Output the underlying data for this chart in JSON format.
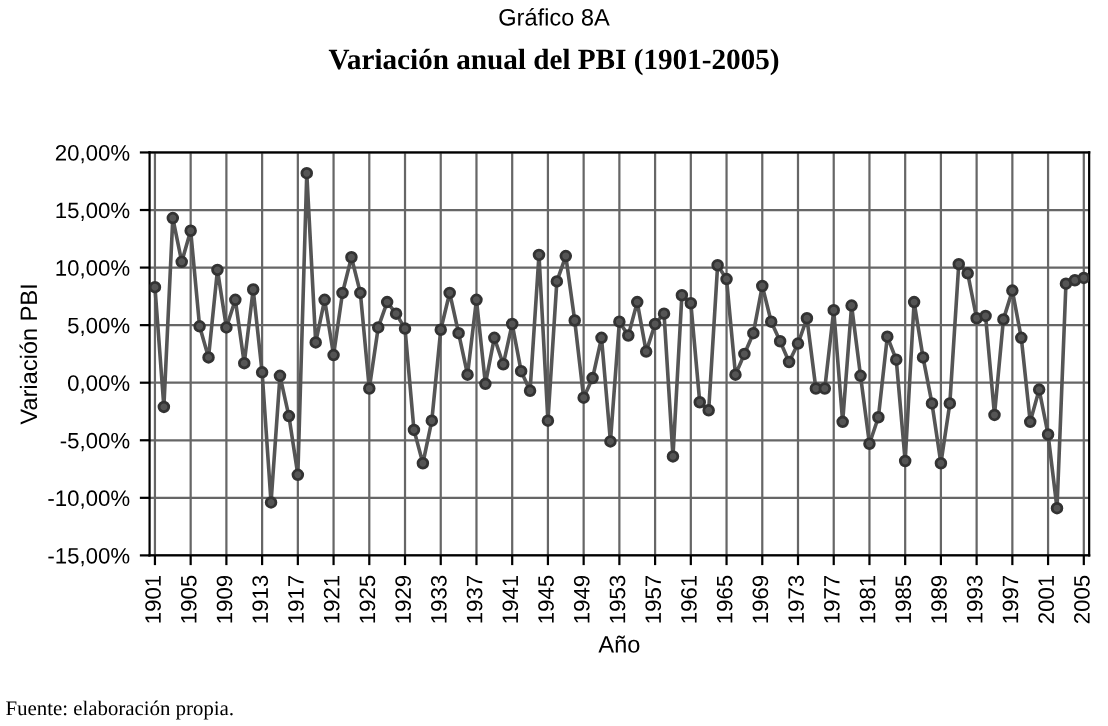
{
  "chart_data": {
    "type": "line",
    "title": "Gráfico 8A",
    "subtitle": "Variación anual del PBI (1901-2005)",
    "xlabel": "Año",
    "ylabel": "Variación PBI",
    "categories": [
      "1901",
      null,
      null,
      null,
      "1905",
      null,
      null,
      null,
      "1909",
      null,
      null,
      null,
      "1913",
      null,
      null,
      null,
      "1917",
      null,
      null,
      null,
      "1921",
      null,
      null,
      null,
      "1925",
      null,
      null,
      null,
      "1929",
      null,
      null,
      null,
      "1933",
      null,
      null,
      null,
      "1937",
      null,
      null,
      null,
      "1941",
      null,
      null,
      null,
      "1945",
      null,
      null,
      null,
      "1949",
      null,
      null,
      null,
      "1953",
      null,
      null,
      null,
      "1957",
      null,
      null,
      null,
      "1961",
      null,
      null,
      null,
      "1965",
      null,
      null,
      null,
      "1969",
      null,
      null,
      null,
      "1973",
      null,
      null,
      null,
      "1977",
      null,
      null,
      null,
      "1981",
      null,
      null,
      null,
      "1985",
      null,
      null,
      null,
      "1989",
      null,
      null,
      null,
      "1993",
      null,
      null,
      null,
      "1997",
      null,
      null,
      null,
      "2001",
      null,
      null,
      null,
      "2005"
    ],
    "series": [
      {
        "color": "#555555",
        "values": [
          8.3,
          -2.1,
          14.3,
          10.5,
          13.2,
          4.9,
          2.2,
          9.8,
          4.8,
          7.2,
          1.7,
          8.1,
          0.9,
          -10.4,
          0.6,
          -2.9,
          -8.0,
          18.2,
          3.5,
          7.2,
          2.4,
          7.8,
          10.9,
          7.8,
          -0.5,
          4.8,
          7.0,
          6.0,
          4.7,
          -4.1,
          -7.0,
          -3.3,
          4.6,
          7.8,
          4.3,
          0.7,
          7.2,
          -0.1,
          3.9,
          1.6,
          5.1,
          1.0,
          -0.7,
          11.1,
          -3.3,
          8.8,
          11.0,
          5.4,
          -1.3,
          0.4,
          3.9,
          -5.1,
          5.3,
          4.1,
          7.0,
          2.7,
          5.1,
          6.0,
          -6.4,
          7.6,
          6.9,
          -1.7,
          -2.4,
          10.2,
          9.0,
          0.7,
          2.5,
          4.3,
          8.4,
          5.3,
          3.6,
          1.8,
          3.4,
          5.6,
          -0.5,
          -0.5,
          6.3,
          -3.4,
          6.7,
          0.6,
          -5.3,
          -3.0,
          4.0,
          2.0,
          -6.8,
          7.0,
          2.2,
          -1.8,
          -7.0,
          -1.8,
          10.3,
          9.5,
          5.6,
          5.8,
          -2.8,
          5.5,
          8.0,
          3.9,
          -3.4,
          -0.6,
          -4.5,
          -10.9,
          8.6,
          8.9,
          9.1
        ]
      }
    ],
    "ylim": [
      -15,
      20
    ],
    "yticks": [
      {
        "value": -15,
        "label": "-15,00%"
      },
      {
        "value": -10,
        "label": "-10,00%"
      },
      {
        "value": -5,
        "label": "-5,00%"
      },
      {
        "value": 0,
        "label": "0,00%"
      },
      {
        "value": 5,
        "label": "5,00%"
      },
      {
        "value": 10,
        "label": "10,00%"
      },
      {
        "value": 15,
        "label": "15,00%"
      },
      {
        "value": 20,
        "label": "20,00%"
      }
    ],
    "grid": true,
    "legend": false,
    "marker": "circle",
    "line_style": "solid",
    "annotations": [
      "Fuente: elaboración propia."
    ]
  }
}
